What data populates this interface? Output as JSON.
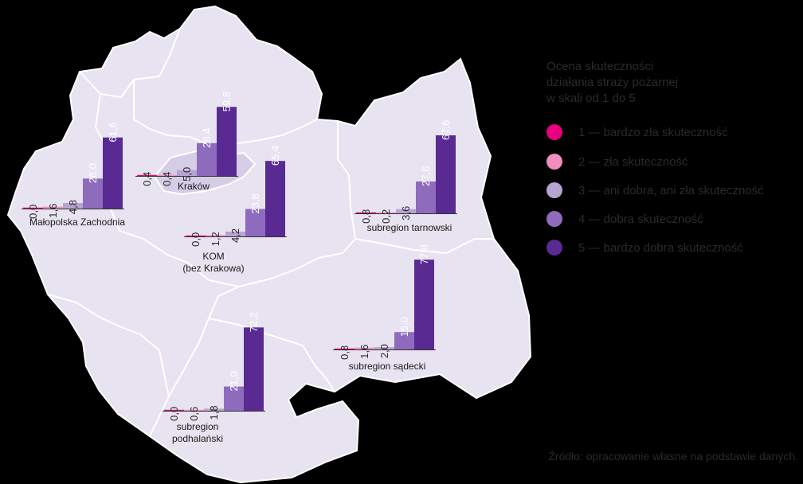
{
  "legend": {
    "title": "Ocena skuteczności\ndziałania straży pożarnej\nw skali od 1 do 5",
    "items": [
      {
        "label": "1 — bardzo zła skuteczność",
        "color": "#e6007e"
      },
      {
        "label": "2 — zła skuteczność",
        "color": "#ef8fbf"
      },
      {
        "label": "3 — ani dobra, ani zła skuteczność",
        "color": "#b7a4d2"
      },
      {
        "label": "4 — dobra skuteczność",
        "color": "#8f6bbd"
      },
      {
        "label": "5 — bardzo dobra skuteczność",
        "color": "#5a2a93"
      }
    ]
  },
  "source": "Źródło: opracowanie własne na podstawie danych.",
  "chart_data": {
    "type": "bar",
    "categories": [
      "1",
      "2",
      "3",
      "4",
      "5"
    ],
    "value_labels_format": "comma-decimal",
    "regions": [
      {
        "name": "Małopolska Zachodnia",
        "values": [
          0.0,
          1.6,
          4.8,
          26.0,
          61.6
        ],
        "labels": [
          "0,0",
          "1,6",
          "4,8",
          "26,0",
          "61,6"
        ]
      },
      {
        "name": "Kraków",
        "values": [
          0.4,
          0.4,
          5.0,
          28.4,
          59.8
        ],
        "labels": [
          "0,4",
          "0,4",
          "5,0",
          "28,4",
          "59,8"
        ]
      },
      {
        "name": "KOM\n(bez Krakowa)",
        "values": [
          0.0,
          1.2,
          4.2,
          23.8,
          65.4
        ],
        "labels": [
          "0,0",
          "1,2",
          "4,2",
          "23,8",
          "65,4"
        ]
      },
      {
        "name": "subregion tarnowski",
        "values": [
          0.8,
          0.2,
          3.6,
          27.6,
          67.6
        ],
        "labels": [
          "0,8",
          "0,2",
          "3,6",
          "27,6",
          "67,6"
        ]
      },
      {
        "name": "subregion sądecki",
        "values": [
          0.8,
          1.6,
          2.0,
          15.0,
          77.8
        ],
        "labels": [
          "0,8",
          "1,6",
          "2,0",
          "15,0",
          "77,8"
        ]
      },
      {
        "name": "subregion\npodhalański",
        "values": [
          0.0,
          0.6,
          1.8,
          21.0,
          72.2
        ],
        "labels": [
          "0,0",
          "0,6",
          "1,8",
          "21,0",
          "72,2"
        ]
      }
    ]
  }
}
